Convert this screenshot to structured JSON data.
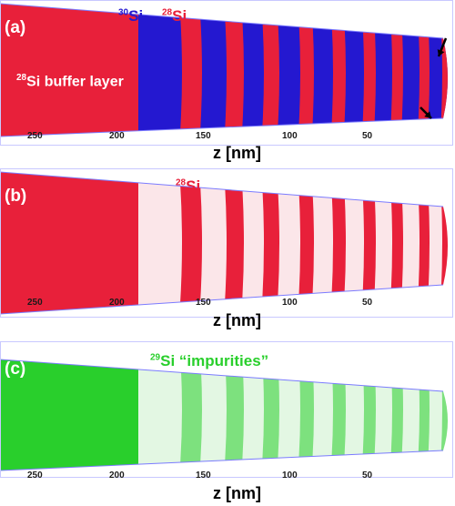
{
  "colors": {
    "si28": "#e8203a",
    "si30": "#2418d0",
    "si29": "#29cf2c",
    "frame": "#7b7bff"
  },
  "icons": [
    "arrow-icon"
  ],
  "panels": [
    {
      "label": "(a)",
      "isotopes": [
        {
          "mass": "30",
          "element": "Si",
          "color": "#2418d0"
        },
        {
          "mass": "28",
          "element": "Si",
          "color": "#e8203a"
        }
      ],
      "annotation": {
        "mass": "28",
        "text": "Si buffer layer"
      },
      "z_ticks": [
        "250",
        "200",
        "150",
        "100",
        "50"
      ],
      "xlabel": "z [nm]"
    },
    {
      "label": "(b)",
      "isotopes": [
        {
          "mass": "28",
          "element": "Si",
          "color": "#e8203a"
        }
      ],
      "z_ticks": [
        "250",
        "200",
        "150",
        "100",
        "50"
      ],
      "xlabel": "z [nm]"
    },
    {
      "label": "(c)",
      "isotopes": [
        {
          "mass": "29",
          "element": "Si “impurities”",
          "color": "#29cf2c"
        }
      ],
      "z_ticks": [
        "250",
        "200",
        "150",
        "100",
        "50"
      ]
    }
  ]
}
